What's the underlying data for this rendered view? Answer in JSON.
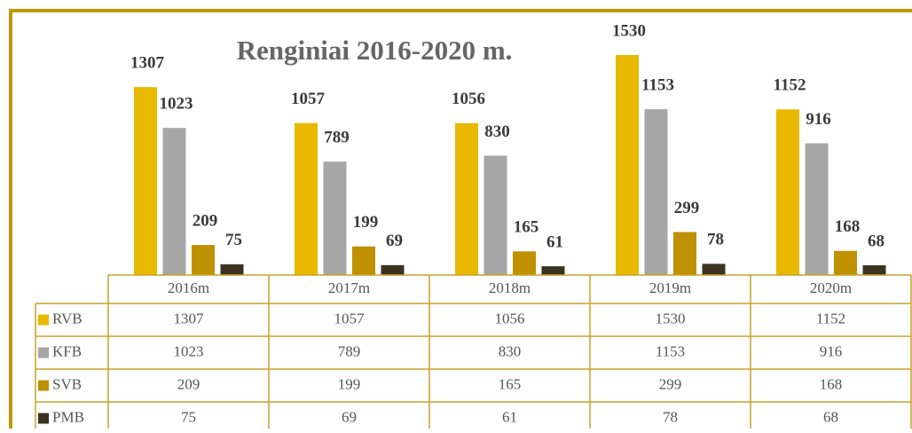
{
  "chart_data": {
    "type": "bar",
    "title": "Renginiai 2016-2020 m.",
    "categories": [
      "2016m",
      "2017m",
      "2018m",
      "2019m",
      "2020m"
    ],
    "series": [
      {
        "name": "RVB",
        "color": "#e8b900",
        "values": [
          1307,
          1057,
          1056,
          1530,
          1152
        ]
      },
      {
        "name": "KFB",
        "color": "#a6a6a6",
        "values": [
          1023,
          789,
          830,
          1153,
          916
        ]
      },
      {
        "name": "SVB",
        "color": "#bf9000",
        "values": [
          209,
          199,
          165,
          299,
          168
        ]
      },
      {
        "name": "PMB",
        "color": "#3b3222",
        "values": [
          75,
          69,
          61,
          78,
          68
        ]
      }
    ]
  }
}
